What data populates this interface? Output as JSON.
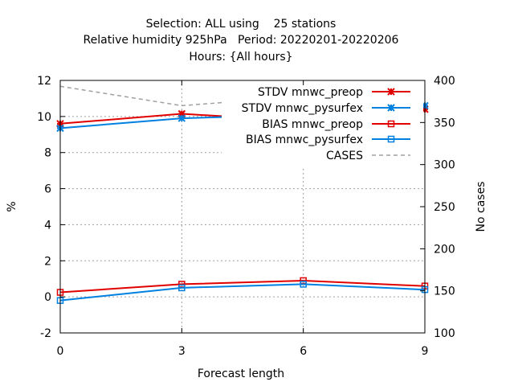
{
  "chart_data": {
    "type": "line",
    "title_lines": [
      "Selection: ALL using    25 stations",
      "Relative humidity 925hPa   Period: 20220201-20220206",
      "Hours: {All hours}"
    ],
    "xlabel": "Forecast length",
    "ylabel": "%",
    "y2label": "No cases",
    "x": [
      0,
      3,
      6,
      9
    ],
    "xticks": [
      "0",
      "3",
      "6",
      "9"
    ],
    "xlim": [
      0,
      9
    ],
    "ylim": [
      -2,
      12
    ],
    "yticks": [
      "-2",
      "0",
      "2",
      "4",
      "6",
      "8",
      "10",
      "12"
    ],
    "y2lim": [
      100,
      400
    ],
    "y2ticks": [
      "100",
      "150",
      "200",
      "250",
      "300",
      "350",
      "400"
    ],
    "grid": true,
    "legend_position": "top-right",
    "series": [
      {
        "name": "STDV mnwc_preop",
        "values": [
          9.6,
          10.15,
          9.75,
          10.4
        ],
        "color": "#e00000",
        "marker": "star",
        "dash": false,
        "axis": "y1"
      },
      {
        "name": "STDV mnwc_pysurfex",
        "values": [
          9.35,
          9.9,
          10.1,
          10.6
        ],
        "color": "#0080e0",
        "marker": "star",
        "dash": false,
        "axis": "y1"
      },
      {
        "name": "BIAS mnwc_preop",
        "values": [
          0.25,
          0.7,
          0.9,
          0.6
        ],
        "color": "#e00000",
        "marker": "square",
        "dash": false,
        "axis": "y1"
      },
      {
        "name": "BIAS mnwc_pysurfex",
        "values": [
          -0.2,
          0.5,
          0.7,
          0.4
        ],
        "color": "#0080e0",
        "marker": "square",
        "dash": false,
        "axis": "y1"
      },
      {
        "name": "CASES",
        "values": [
          393,
          370,
          381,
          373
        ],
        "color": "#a0a0a0",
        "marker": "none",
        "dash": true,
        "axis": "y2"
      }
    ]
  }
}
